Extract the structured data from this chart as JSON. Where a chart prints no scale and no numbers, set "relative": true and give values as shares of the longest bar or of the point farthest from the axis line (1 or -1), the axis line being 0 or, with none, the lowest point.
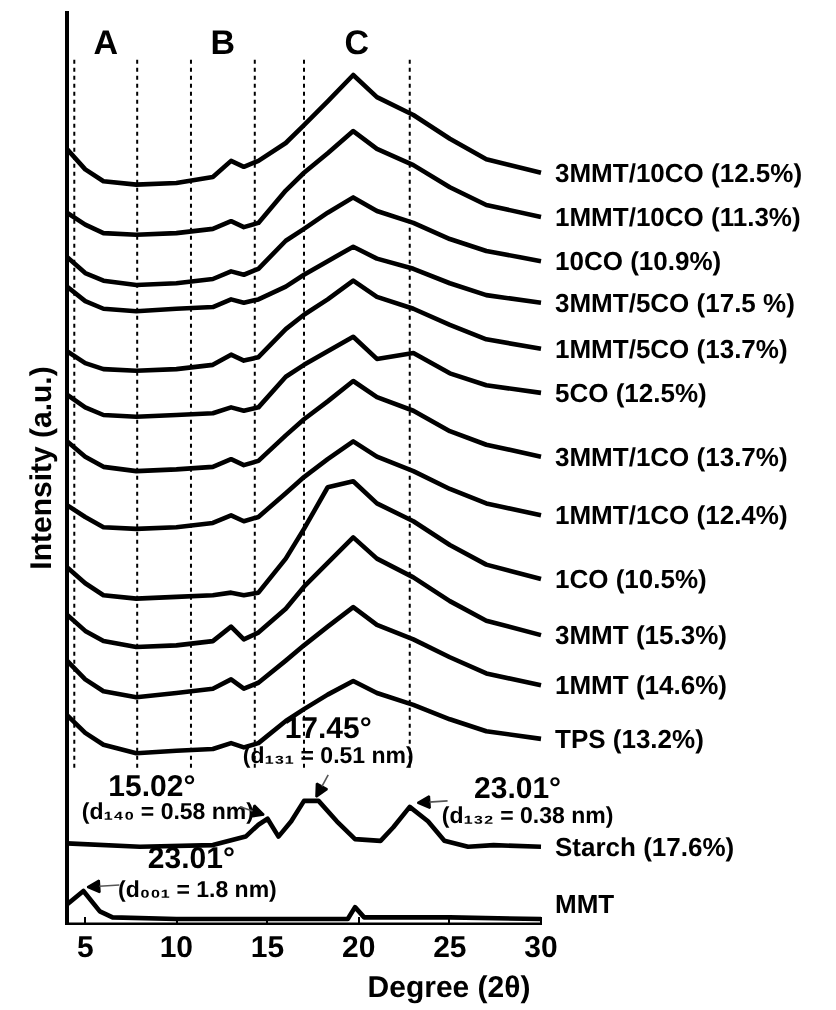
{
  "chart_data": {
    "type": "line",
    "relative": true,
    "xlabel": "Degree (2θ)",
    "ylabel": "Intensity (a.u.)",
    "xlim": [
      4,
      30
    ],
    "xticks": [
      5,
      10,
      15,
      20,
      25,
      30
    ],
    "x": [
      4,
      5,
      6,
      7.8,
      10,
      12,
      13,
      13.7,
      14.5,
      16,
      17,
      18.3,
      19.7,
      21,
      23,
      25,
      27,
      30
    ],
    "series": [
      {
        "name": "3MMT/10CO (12.5%)",
        "color": "#000000",
        "values": [
          0.913,
          0.889,
          0.875,
          0.871,
          0.873,
          0.88,
          0.899,
          0.892,
          0.899,
          0.92,
          0.941,
          0.969,
          1.0,
          0.974,
          0.953,
          0.925,
          0.901,
          0.885
        ]
      },
      {
        "name": "1MMT/10CO (11.3%)",
        "color": "#000000",
        "values": [
          0.838,
          0.824,
          0.814,
          0.812,
          0.814,
          0.819,
          0.828,
          0.821,
          0.826,
          0.864,
          0.885,
          0.908,
          0.934,
          0.913,
          0.894,
          0.868,
          0.847,
          0.833
        ]
      },
      {
        "name": "10CO (10.9%)",
        "color": "#000000",
        "values": [
          0.786,
          0.767,
          0.758,
          0.753,
          0.755,
          0.76,
          0.769,
          0.765,
          0.772,
          0.805,
          0.819,
          0.838,
          0.856,
          0.84,
          0.826,
          0.807,
          0.793,
          0.781
        ]
      },
      {
        "name": "3MMT/5CO (17.5 %)",
        "color": "#000000",
        "values": [
          0.751,
          0.734,
          0.725,
          0.722,
          0.725,
          0.727,
          0.736,
          0.732,
          0.736,
          0.751,
          0.765,
          0.781,
          0.798,
          0.784,
          0.772,
          0.755,
          0.741,
          0.732
        ]
      },
      {
        "name": "1MMT/5CO (13.7%)",
        "color": "#000000",
        "values": [
          0.675,
          0.661,
          0.654,
          0.652,
          0.654,
          0.659,
          0.671,
          0.664,
          0.668,
          0.701,
          0.718,
          0.736,
          0.758,
          0.739,
          0.725,
          0.706,
          0.689,
          0.678
        ]
      },
      {
        "name": "5CO (12.5%)",
        "color": "#000000",
        "values": [
          0.624,
          0.609,
          0.6,
          0.598,
          0.6,
          0.602,
          0.609,
          0.605,
          0.609,
          0.645,
          0.659,
          0.675,
          0.692,
          0.666,
          0.673,
          0.649,
          0.635,
          0.626
        ]
      },
      {
        "name": "3MMT/1CO (13.7%)",
        "color": "#000000",
        "values": [
          0.569,
          0.551,
          0.539,
          0.534,
          0.536,
          0.539,
          0.548,
          0.541,
          0.546,
          0.576,
          0.595,
          0.616,
          0.64,
          0.621,
          0.605,
          0.581,
          0.565,
          0.551
        ]
      },
      {
        "name": "1MMT/1CO (12.4%)",
        "color": "#000000",
        "values": [
          0.494,
          0.48,
          0.468,
          0.466,
          0.468,
          0.473,
          0.482,
          0.475,
          0.48,
          0.508,
          0.527,
          0.548,
          0.569,
          0.551,
          0.534,
          0.513,
          0.496,
          0.482
        ]
      },
      {
        "name": "1CO (10.5%)",
        "color": "#000000",
        "values": [
          0.421,
          0.402,
          0.388,
          0.384,
          0.386,
          0.388,
          0.391,
          0.388,
          0.391,
          0.431,
          0.466,
          0.515,
          0.522,
          0.496,
          0.475,
          0.447,
          0.424,
          0.407
        ]
      },
      {
        "name": "3MMT (15.3%)",
        "color": "#000000",
        "values": [
          0.365,
          0.346,
          0.334,
          0.327,
          0.329,
          0.334,
          0.351,
          0.336,
          0.344,
          0.372,
          0.398,
          0.426,
          0.456,
          0.431,
          0.409,
          0.381,
          0.358,
          0.341
        ]
      },
      {
        "name": "1MMT (14.6%)",
        "color": "#000000",
        "values": [
          0.311,
          0.289,
          0.275,
          0.268,
          0.273,
          0.278,
          0.289,
          0.278,
          0.285,
          0.311,
          0.329,
          0.351,
          0.374,
          0.353,
          0.336,
          0.315,
          0.296,
          0.282
        ]
      },
      {
        "name": "TPS (13.2%)",
        "color": "#000000",
        "values": [
          0.247,
          0.226,
          0.212,
          0.202,
          0.205,
          0.207,
          0.214,
          0.209,
          0.214,
          0.24,
          0.254,
          0.271,
          0.287,
          0.273,
          0.259,
          0.242,
          0.228,
          0.219
        ]
      },
      {
        "name": "Starch (17.6%)",
        "color": "#000000",
        "x": [
          4,
          8,
          12,
          13.8,
          14.5,
          15,
          15.6,
          16.3,
          17,
          17.8,
          18.8,
          19.8,
          21.2,
          21.9,
          22.8,
          23.8,
          24.7,
          26,
          27.4,
          30
        ],
        "values": [
          0.096,
          0.092,
          0.094,
          0.104,
          0.118,
          0.125,
          0.104,
          0.122,
          0.146,
          0.146,
          0.122,
          0.101,
          0.099,
          0.115,
          0.139,
          0.122,
          0.099,
          0.092,
          0.094,
          0.092
        ]
      },
      {
        "name": "MMT",
        "color": "#000000",
        "x": [
          4,
          4.9,
          5.8,
          6.5,
          10,
          19.4,
          19.8,
          20.3,
          25,
          30
        ],
        "values": [
          0.024,
          0.04,
          0.016,
          0.009,
          0.007,
          0.007,
          0.021,
          0.009,
          0.009,
          0.007
        ]
      }
    ],
    "ref_lines": [
      {
        "axis": "x",
        "value": 4.4,
        "line_style": "dotted"
      },
      {
        "axis": "x",
        "value": 7.85,
        "line_style": "dotted"
      },
      {
        "axis": "x",
        "value": 10.8,
        "line_style": "dotted"
      },
      {
        "axis": "x",
        "value": 14.3,
        "line_style": "dotted"
      },
      {
        "axis": "x",
        "value": 17.0,
        "line_style": "dotted"
      },
      {
        "axis": "x",
        "value": 22.8,
        "line_style": "dotted"
      }
    ],
    "annotations": [
      {
        "text": "15.02°\n(d₁₄₀ = 0.58 nm)",
        "x": 15.02,
        "y": 0.125
      },
      {
        "text": "17.45°\n(d₁₃₁ = 0.51 nm)",
        "x": 17.45,
        "y": 0.146
      },
      {
        "text": "23.01°\n(d₁₃₂ = 0.38 nm)",
        "x": 23.01,
        "y": 0.139
      },
      {
        "text": "23.01°\n(d₀₀₁ = 1.8 nm)",
        "x": 4.9,
        "y": 0.04
      },
      "A",
      "B",
      "C"
    ]
  }
}
